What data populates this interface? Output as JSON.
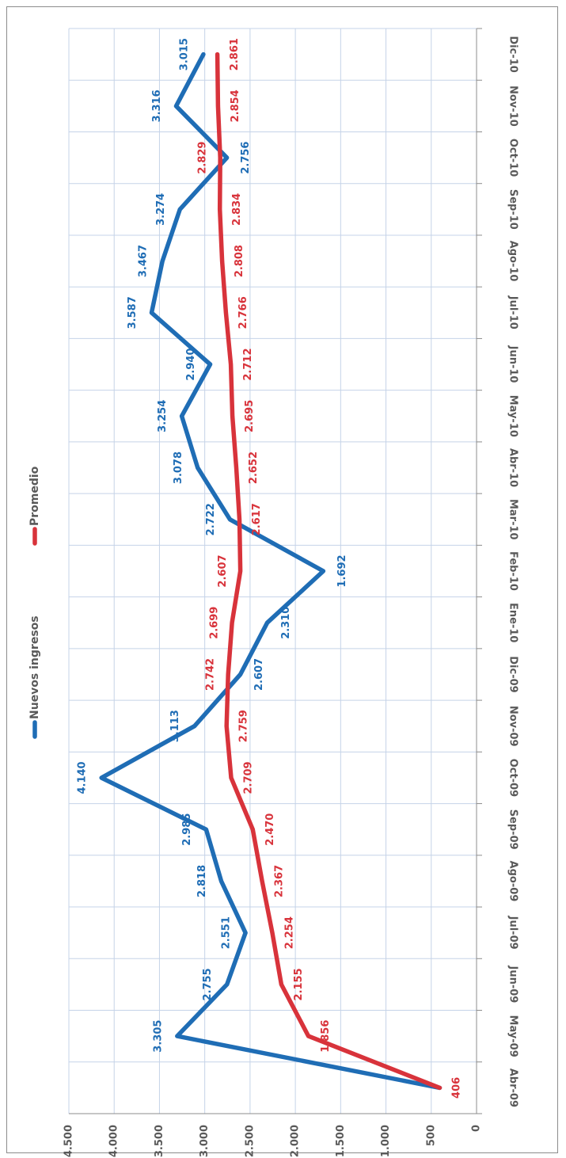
{
  "chart_data": {
    "type": "line",
    "categories": [
      "Abr-09",
      "May-09",
      "Jun-09",
      "Jul-09",
      "Ago-09",
      "Sep-09",
      "Oct-09",
      "Nov-09",
      "Dic-09",
      "Ene-10",
      "Feb-10",
      "Mar-10",
      "Abr-10",
      "May-10",
      "Jun-10",
      "Jul-10",
      "Ago-10",
      "Sep-10",
      "Oct-10",
      "Nov-10",
      "Dic-10"
    ],
    "series": [
      {
        "name": "Nuevos ingresos",
        "color": "#1f6db5",
        "values": [
          406,
          3305,
          2755,
          2551,
          2818,
          2985,
          4140,
          3113,
          2607,
          2310,
          1692,
          2722,
          3078,
          3254,
          2940,
          3587,
          3467,
          3274,
          2756,
          3316,
          3015
        ],
        "labels": [
          "406",
          "3.305",
          "2.755",
          "2.551",
          "2.818",
          "2.985",
          "4.140",
          "3.113",
          "2.607",
          "2.310",
          "1.692",
          "2.722",
          "3.078",
          "3.254",
          "2.940",
          "3.587",
          "3.467",
          "3.274",
          "2.756",
          "3.316",
          "3.015"
        ]
      },
      {
        "name": "Promedio",
        "color": "#d8333b",
        "values": [
          406,
          1856,
          2155,
          2254,
          2367,
          2470,
          2709,
          2759,
          2742,
          2699,
          2607,
          2617,
          2652,
          2695,
          2712,
          2766,
          2808,
          2834,
          2829,
          2854,
          2861
        ],
        "labels": [
          "406",
          "1.856",
          "2.155",
          "2.254",
          "2.367",
          "2.470",
          "2.709",
          "2.759",
          "2.742",
          "2.699",
          "2.607",
          "2.617",
          "2.652",
          "2.695",
          "2.712",
          "2.766",
          "2.808",
          "2.834",
          "2.829",
          "2.854",
          "2.861"
        ]
      }
    ],
    "ylim": [
      0,
      4500
    ],
    "yticks": [
      0,
      500,
      1000,
      1500,
      2000,
      2500,
      3000,
      3500,
      4000,
      4500
    ],
    "ytick_labels": [
      "0",
      "500",
      "1.000",
      "1.500",
      "2.000",
      "2.500",
      "3.000",
      "3.500",
      "4.000",
      "4.500"
    ],
    "grid": true,
    "legend_position": "top",
    "orientation": "rotated 90 degrees clockwise"
  }
}
